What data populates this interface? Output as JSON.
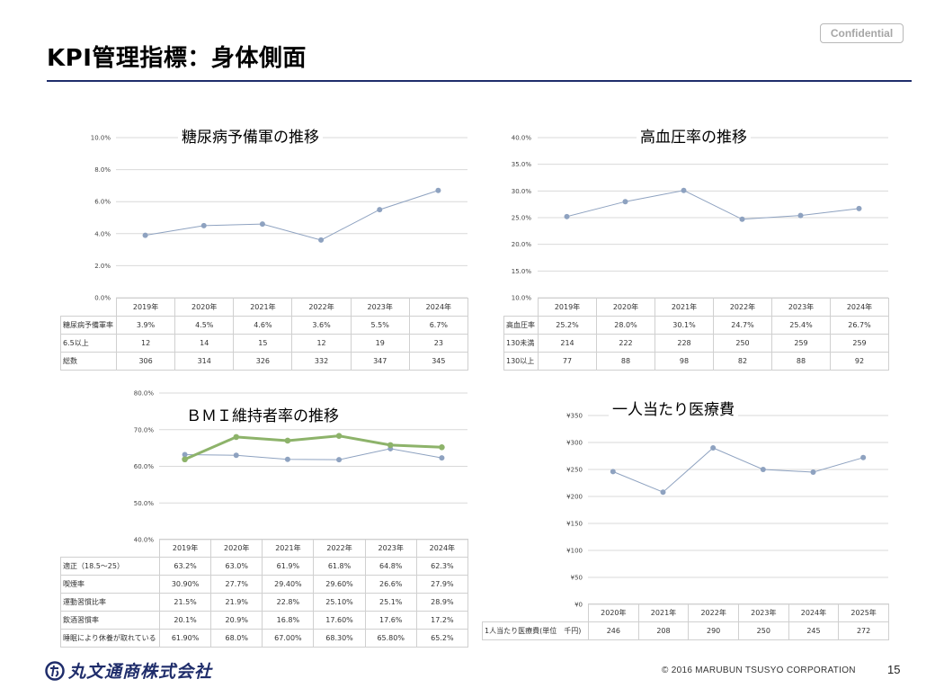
{
  "confidential": "Confidential",
  "title": "KPI管理指標：身体側面",
  "footer": {
    "logo_text": "丸文通商株式会社",
    "copyright": "© 2016 MARUBUN TSUSYO CORPORATION",
    "page": "15"
  },
  "colors": {
    "line": "#8ea2c0",
    "line_green": "#8db36a",
    "rule": "#1f2d6b",
    "grid": "#d9d9d9"
  },
  "chart_data": [
    {
      "type": "line",
      "title": "糖尿病予備軍の推移",
      "categories": [
        "2019年",
        "2020年",
        "2021年",
        "2022年",
        "2023年",
        "2024年"
      ],
      "y_ticks": [
        "0.0%",
        "2.0%",
        "4.0%",
        "6.0%",
        "8.0%",
        "10.0%"
      ],
      "ylim": [
        0,
        10
      ],
      "series": [
        {
          "values": [
            3.9,
            4.5,
            4.6,
            3.6,
            5.5,
            6.7
          ]
        }
      ],
      "table": [
        {
          "label": "糖尿病予備軍率",
          "values": [
            "3.9%",
            "4.5%",
            "4.6%",
            "3.6%",
            "5.5%",
            "6.7%"
          ]
        },
        {
          "label": "6.5以上",
          "values": [
            "12",
            "14",
            "15",
            "12",
            "19",
            "23"
          ]
        },
        {
          "label": "総数",
          "values": [
            "306",
            "314",
            "326",
            "332",
            "347",
            "345"
          ]
        }
      ]
    },
    {
      "type": "line",
      "title": "高血圧率の推移",
      "categories": [
        "2019年",
        "2020年",
        "2021年",
        "2022年",
        "2023年",
        "2024年"
      ],
      "y_ticks": [
        "10.0%",
        "15.0%",
        "20.0%",
        "25.0%",
        "30.0%",
        "35.0%",
        "40.0%"
      ],
      "ylim": [
        10,
        40
      ],
      "series": [
        {
          "values": [
            25.2,
            28.0,
            30.1,
            24.7,
            25.4,
            26.7
          ]
        }
      ],
      "table": [
        {
          "label": "高血圧率",
          "values": [
            "25.2%",
            "28.0%",
            "30.1%",
            "24.7%",
            "25.4%",
            "26.7%"
          ]
        },
        {
          "label": "130未満",
          "values": [
            "214",
            "222",
            "228",
            "250",
            "259",
            "259"
          ]
        },
        {
          "label": "130以上",
          "values": [
            "77",
            "88",
            "98",
            "82",
            "88",
            "92"
          ]
        }
      ]
    },
    {
      "type": "line",
      "title": "ＢＭＩ維持者率の推移",
      "categories": [
        "2019年",
        "2020年",
        "2021年",
        "2022年",
        "2023年",
        "2024年"
      ],
      "y_ticks": [
        "40.0%",
        "50.0%",
        "60.0%",
        "70.0%",
        "80.0%"
      ],
      "ylim": [
        40,
        80
      ],
      "series": [
        {
          "values": [
            63.2,
            63.0,
            61.9,
            61.8,
            64.8,
            62.3
          ]
        },
        {
          "values": [
            61.9,
            68.0,
            67.0,
            68.3,
            65.8,
            65.2
          ]
        }
      ],
      "table": [
        {
          "label": "適正（18.5～25）",
          "values": [
            "63.2%",
            "63.0%",
            "61.9%",
            "61.8%",
            "64.8%",
            "62.3%"
          ]
        },
        {
          "label": "喫煙率",
          "values": [
            "30.90%",
            "27.7%",
            "29.40%",
            "29.60%",
            "26.6%",
            "27.9%"
          ]
        },
        {
          "label": "運動習慣比率",
          "values": [
            "21.5%",
            "21.9%",
            "22.8%",
            "25.10%",
            "25.1%",
            "28.9%"
          ]
        },
        {
          "label": "飲酒習慣率",
          "values": [
            "20.1%",
            "20.9%",
            "16.8%",
            "17.60%",
            "17.6%",
            "17.2%"
          ]
        },
        {
          "label": "睡眠により休養が取れている",
          "values": [
            "61.90%",
            "68.0%",
            "67.00%",
            "68.30%",
            "65.80%",
            "65.2%"
          ]
        }
      ]
    },
    {
      "type": "line",
      "title": "一人当たり医療費",
      "categories": [
        "2020年",
        "2021年",
        "2022年",
        "2023年",
        "2024年",
        "2025年"
      ],
      "y_ticks": [
        "¥0",
        "¥50",
        "¥100",
        "¥150",
        "¥200",
        "¥250",
        "¥300",
        "¥350"
      ],
      "ylim": [
        0,
        350
      ],
      "series": [
        {
          "values": [
            246,
            208,
            290,
            250,
            245,
            272
          ]
        }
      ],
      "table": [
        {
          "label": "1人当たり医療費(単位　千円)",
          "values": [
            "246",
            "208",
            "290",
            "250",
            "245",
            "272"
          ]
        }
      ]
    }
  ]
}
